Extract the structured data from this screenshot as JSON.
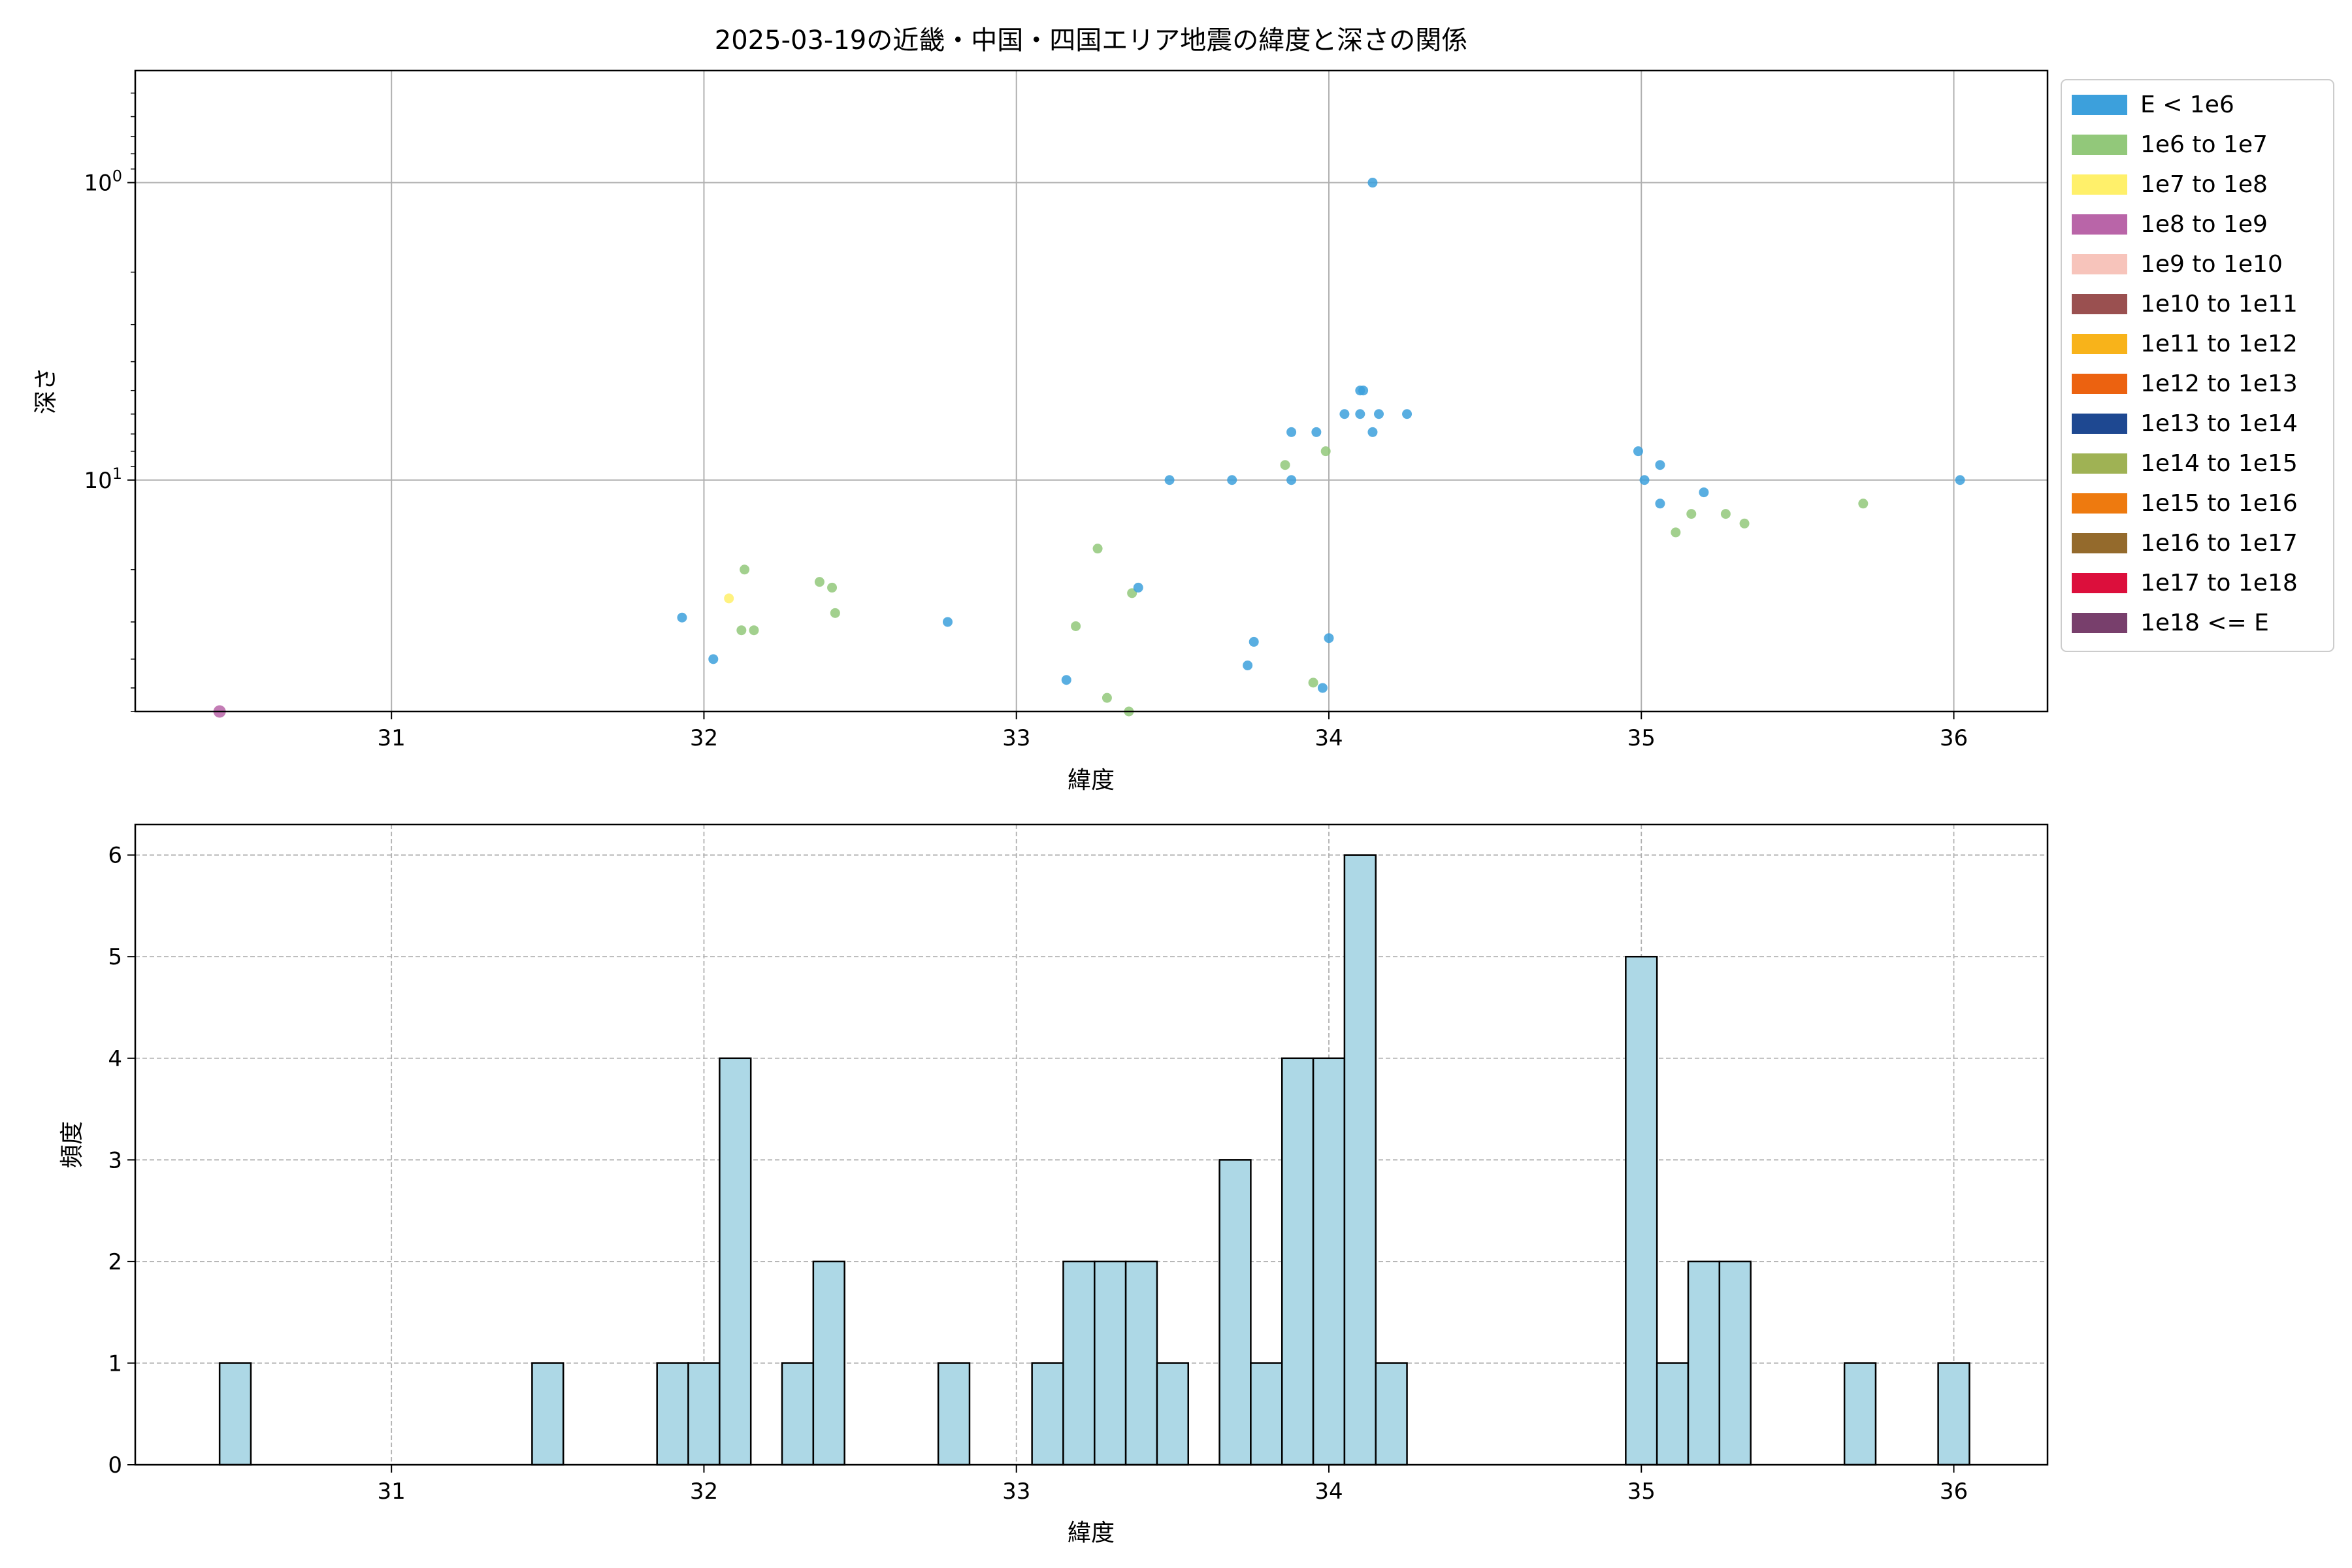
{
  "figure": {
    "title": "2025-03-19の近畿・中国・四国エリア地震の緯度と深さの関係"
  },
  "chart_data": [
    {
      "type": "scatter",
      "title": "2025-03-19の近畿・中国・四国エリア地震の緯度と深さの関係",
      "xlabel": "緯度",
      "ylabel": "深さ",
      "xlim": [
        30.18,
        36.3
      ],
      "ylim": [
        0.42,
        60
      ],
      "y_scale": "log",
      "y_inverted": true,
      "grid": true,
      "x_ticks": [
        {
          "value": 31,
          "label": "31"
        },
        {
          "value": 32,
          "label": "32"
        },
        {
          "value": 33,
          "label": "33"
        },
        {
          "value": 34,
          "label": "34"
        },
        {
          "value": 35,
          "label": "35"
        },
        {
          "value": 36,
          "label": "36"
        }
      ],
      "y_ticks": [
        {
          "value": 1,
          "base": "10",
          "exp": "0"
        },
        {
          "value": 10,
          "base": "10",
          "exp": "1"
        }
      ],
      "legend_position": "outside-right",
      "legend": [
        {
          "label": "E < 1e6",
          "color": "#3ca0dc"
        },
        {
          "label": "1e6 to 1e7",
          "color": "#92c87a"
        },
        {
          "label": "1e7 to 1e8",
          "color": "#fff06a"
        },
        {
          "label": "1e8 to 1e9",
          "color": "#b965a8"
        },
        {
          "label": "1e9 to 1e10",
          "color": "#f7c4bb"
        },
        {
          "label": "1e10 to 1e11",
          "color": "#9a5050"
        },
        {
          "label": "1e11 to 1e12",
          "color": "#f8b31a"
        },
        {
          "label": "1e12 to 1e13",
          "color": "#ec6210"
        },
        {
          "label": "1e13 to 1e14",
          "color": "#1e4891"
        },
        {
          "label": "1e14 to 1e15",
          "color": "#9fb254"
        },
        {
          "label": "1e15 to 1e16",
          "color": "#ee7a0f"
        },
        {
          "label": "1e16 to 1e17",
          "color": "#946a2c"
        },
        {
          "label": "1e17 to 1e18",
          "color": "#dc0f3c"
        },
        {
          "label": "1e18 <= E",
          "color": "#783f6c"
        }
      ],
      "points": [
        {
          "x": 30.45,
          "y": 60,
          "c": "1e8 to 1e9"
        },
        {
          "x": 31.93,
          "y": 29,
          "c": "E < 1e6"
        },
        {
          "x": 32.03,
          "y": 40,
          "c": "E < 1e6"
        },
        {
          "x": 32.08,
          "y": 25,
          "c": "1e7 to 1e8"
        },
        {
          "x": 32.12,
          "y": 32,
          "c": "1e6 to 1e7"
        },
        {
          "x": 32.13,
          "y": 20,
          "c": "1e6 to 1e7"
        },
        {
          "x": 32.16,
          "y": 32,
          "c": "1e6 to 1e7"
        },
        {
          "x": 32.37,
          "y": 22,
          "c": "1e6 to 1e7"
        },
        {
          "x": 32.41,
          "y": 23,
          "c": "1e6 to 1e7"
        },
        {
          "x": 32.42,
          "y": 28,
          "c": "1e6 to 1e7"
        },
        {
          "x": 32.78,
          "y": 30,
          "c": "E < 1e6"
        },
        {
          "x": 33.16,
          "y": 47,
          "c": "E < 1e6"
        },
        {
          "x": 33.19,
          "y": 31,
          "c": "1e6 to 1e7"
        },
        {
          "x": 33.26,
          "y": 17,
          "c": "1e6 to 1e7"
        },
        {
          "x": 33.29,
          "y": 54,
          "c": "1e6 to 1e7"
        },
        {
          "x": 33.36,
          "y": 60,
          "c": "1e6 to 1e7"
        },
        {
          "x": 33.37,
          "y": 24,
          "c": "1e6 to 1e7"
        },
        {
          "x": 33.39,
          "y": 23,
          "c": "E < 1e6"
        },
        {
          "x": 33.49,
          "y": 10,
          "c": "E < 1e6"
        },
        {
          "x": 33.69,
          "y": 10,
          "c": "E < 1e6"
        },
        {
          "x": 33.74,
          "y": 42,
          "c": "E < 1e6"
        },
        {
          "x": 33.76,
          "y": 35,
          "c": "E < 1e6"
        },
        {
          "x": 33.86,
          "y": 8.9,
          "c": "1e6 to 1e7"
        },
        {
          "x": 33.88,
          "y": 6.9,
          "c": "E < 1e6"
        },
        {
          "x": 33.88,
          "y": 10,
          "c": "E < 1e6"
        },
        {
          "x": 33.95,
          "y": 48,
          "c": "1e6 to 1e7"
        },
        {
          "x": 33.96,
          "y": 6.9,
          "c": "E < 1e6"
        },
        {
          "x": 33.98,
          "y": 50,
          "c": "E < 1e6"
        },
        {
          "x": 33.99,
          "y": 8,
          "c": "1e6 to 1e7"
        },
        {
          "x": 34.0,
          "y": 34,
          "c": "E < 1e6"
        },
        {
          "x": 34.05,
          "y": 6,
          "c": "E < 1e6"
        },
        {
          "x": 34.1,
          "y": 5,
          "c": "E < 1e6"
        },
        {
          "x": 34.1,
          "y": 6,
          "c": "E < 1e6"
        },
        {
          "x": 34.11,
          "y": 5,
          "c": "E < 1e6"
        },
        {
          "x": 34.14,
          "y": 1,
          "c": "E < 1e6"
        },
        {
          "x": 34.14,
          "y": 6.9,
          "c": "E < 1e6"
        },
        {
          "x": 34.16,
          "y": 6,
          "c": "E < 1e6"
        },
        {
          "x": 34.25,
          "y": 6,
          "c": "E < 1e6"
        },
        {
          "x": 34.99,
          "y": 8,
          "c": "E < 1e6"
        },
        {
          "x": 35.01,
          "y": 10,
          "c": "E < 1e6"
        },
        {
          "x": 35.06,
          "y": 12,
          "c": "E < 1e6"
        },
        {
          "x": 35.06,
          "y": 8.9,
          "c": "E < 1e6"
        },
        {
          "x": 35.11,
          "y": 15,
          "c": "1e6 to 1e7"
        },
        {
          "x": 35.16,
          "y": 13,
          "c": "1e6 to 1e7"
        },
        {
          "x": 35.2,
          "y": 11,
          "c": "E < 1e6"
        },
        {
          "x": 35.27,
          "y": 13,
          "c": "1e6 to 1e7"
        },
        {
          "x": 35.33,
          "y": 14,
          "c": "1e6 to 1e7"
        },
        {
          "x": 35.71,
          "y": 12,
          "c": "1e6 to 1e7"
        },
        {
          "x": 36.02,
          "y": 10,
          "c": "E < 1e6"
        }
      ]
    },
    {
      "type": "bar",
      "subtype": "histogram",
      "xlabel": "緯度",
      "ylabel": "頻度",
      "xlim": [
        30.18,
        36.3
      ],
      "ylim": [
        0,
        6.3
      ],
      "grid": true,
      "x_ticks": [
        {
          "value": 31,
          "label": "31"
        },
        {
          "value": 32,
          "label": "32"
        },
        {
          "value": 33,
          "label": "33"
        },
        {
          "value": 34,
          "label": "34"
        },
        {
          "value": 35,
          "label": "35"
        },
        {
          "value": 36,
          "label": "36"
        }
      ],
      "y_ticks": [
        {
          "value": 0,
          "label": "0"
        },
        {
          "value": 1,
          "label": "1"
        },
        {
          "value": 2,
          "label": "2"
        },
        {
          "value": 3,
          "label": "3"
        },
        {
          "value": 4,
          "label": "4"
        },
        {
          "value": 5,
          "label": "5"
        },
        {
          "value": 6,
          "label": "6"
        }
      ],
      "bar_color": "#add8e6",
      "edge_color": "#000000",
      "bins": [
        {
          "x0": 30.45,
          "x1": 30.55,
          "count": 1
        },
        {
          "x0": 31.45,
          "x1": 31.55,
          "count": 1
        },
        {
          "x0": 31.85,
          "x1": 31.95,
          "count": 1
        },
        {
          "x0": 31.95,
          "x1": 32.05,
          "count": 1
        },
        {
          "x0": 32.05,
          "x1": 32.15,
          "count": 4
        },
        {
          "x0": 32.25,
          "x1": 32.35,
          "count": 1
        },
        {
          "x0": 32.35,
          "x1": 32.45,
          "count": 2
        },
        {
          "x0": 32.75,
          "x1": 32.85,
          "count": 1
        },
        {
          "x0": 33.05,
          "x1": 33.15,
          "count": 1
        },
        {
          "x0": 33.15,
          "x1": 33.25,
          "count": 2
        },
        {
          "x0": 33.25,
          "x1": 33.35,
          "count": 2
        },
        {
          "x0": 33.35,
          "x1": 33.45,
          "count": 2
        },
        {
          "x0": 33.45,
          "x1": 33.55,
          "count": 1
        },
        {
          "x0": 33.65,
          "x1": 33.75,
          "count": 3
        },
        {
          "x0": 33.75,
          "x1": 33.85,
          "count": 1
        },
        {
          "x0": 33.85,
          "x1": 33.95,
          "count": 4
        },
        {
          "x0": 33.95,
          "x1": 34.05,
          "count": 4
        },
        {
          "x0": 34.05,
          "x1": 34.15,
          "count": 6
        },
        {
          "x0": 34.15,
          "x1": 34.25,
          "count": 1
        },
        {
          "x0": 34.95,
          "x1": 35.05,
          "count": 5
        },
        {
          "x0": 35.05,
          "x1": 35.15,
          "count": 1
        },
        {
          "x0": 35.15,
          "x1": 35.25,
          "count": 2
        },
        {
          "x0": 35.25,
          "x1": 35.35,
          "count": 2
        },
        {
          "x0": 35.65,
          "x1": 35.75,
          "count": 1
        },
        {
          "x0": 35.95,
          "x1": 36.05,
          "count": 1
        }
      ]
    }
  ]
}
